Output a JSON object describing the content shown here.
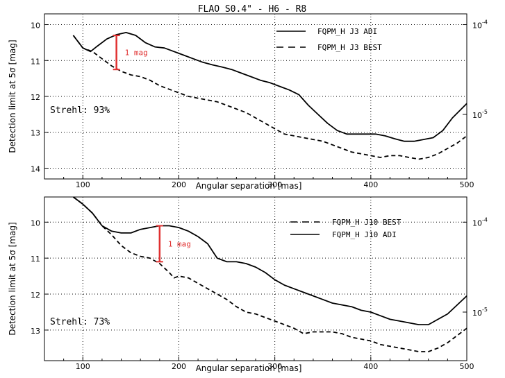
{
  "figure_title": "FLAO S0.4\" - H6 - R8",
  "colors": {
    "curve": "#000000",
    "annotation": "#e03030",
    "grid": "#000000"
  },
  "chart_data": [
    {
      "type": "line",
      "xlabel": "Angular separation [mas]",
      "ylabel": "Detection limit at 5σ [mag]",
      "xlim": [
        60,
        500
      ],
      "ylim": [
        14.3,
        9.7
      ],
      "x_ticks": [
        100,
        200,
        300,
        400,
        500
      ],
      "y_ticks": [
        10,
        11,
        12,
        13,
        14
      ],
      "right_ticks": [
        {
          "mag": 10.0,
          "label": "10",
          "exp": "-4"
        },
        {
          "mag": 12.5,
          "label": "10",
          "exp": "-5"
        }
      ],
      "grid": "dotted",
      "legend_position": "top-right",
      "strehl": "Strehl: 93%",
      "annotation": {
        "label": "1 mag",
        "x": 135,
        "y_top": 10.3,
        "y_bottom": 11.25
      },
      "series": [
        {
          "name": "FQPM_H J3 ADI",
          "style": "solid",
          "x": [
            90,
            100,
            108,
            115,
            125,
            135,
            145,
            155,
            165,
            175,
            185,
            195,
            205,
            215,
            225,
            235,
            245,
            255,
            265,
            275,
            285,
            295,
            305,
            315,
            325,
            335,
            345,
            355,
            365,
            375,
            385,
            395,
            405,
            415,
            425,
            435,
            445,
            455,
            465,
            475,
            485,
            500
          ],
          "values": [
            10.3,
            10.65,
            10.75,
            10.6,
            10.4,
            10.28,
            10.22,
            10.3,
            10.5,
            10.62,
            10.65,
            10.75,
            10.85,
            10.95,
            11.05,
            11.12,
            11.18,
            11.25,
            11.35,
            11.45,
            11.55,
            11.62,
            11.72,
            11.82,
            11.95,
            12.25,
            12.5,
            12.75,
            12.95,
            13.05,
            13.05,
            13.05,
            13.05,
            13.1,
            13.18,
            13.25,
            13.25,
            13.2,
            13.15,
            12.95,
            12.6,
            12.2
          ]
        },
        {
          "name": "FQPM_H J3 BEST",
          "style": "dashed",
          "x": [
            90,
            100,
            110,
            120,
            130,
            140,
            150,
            160,
            170,
            180,
            190,
            200,
            210,
            220,
            230,
            240,
            250,
            260,
            270,
            280,
            290,
            300,
            310,
            320,
            330,
            340,
            350,
            360,
            370,
            380,
            390,
            400,
            410,
            420,
            430,
            440,
            450,
            460,
            470,
            480,
            490,
            500
          ],
          "values": [
            10.3,
            10.65,
            10.75,
            10.95,
            11.15,
            11.3,
            11.4,
            11.45,
            11.55,
            11.7,
            11.8,
            11.9,
            12.0,
            12.05,
            12.1,
            12.15,
            12.25,
            12.35,
            12.45,
            12.6,
            12.75,
            12.9,
            13.05,
            13.1,
            13.15,
            13.2,
            13.25,
            13.35,
            13.45,
            13.55,
            13.6,
            13.65,
            13.7,
            13.65,
            13.65,
            13.7,
            13.75,
            13.7,
            13.6,
            13.45,
            13.3,
            13.1
          ]
        }
      ]
    },
    {
      "type": "line",
      "xlabel": "Angular separation [mas]",
      "ylabel": "Detection limit at 5σ [mag]",
      "xlim": [
        60,
        500
      ],
      "ylim": [
        13.85,
        9.3
      ],
      "x_ticks": [
        100,
        200,
        300,
        400,
        500
      ],
      "y_ticks": [
        10,
        11,
        12,
        13
      ],
      "right_ticks": [
        {
          "mag": 10.0,
          "label": "10",
          "exp": "-4"
        },
        {
          "mag": 12.5,
          "label": "10",
          "exp": "-5"
        }
      ],
      "grid": "dotted",
      "legend_position": "top-right",
      "strehl": "Strehl: 73%",
      "annotation": {
        "label": "1 mag",
        "x": 180,
        "y_top": 10.1,
        "y_bottom": 11.1
      },
      "series": [
        {
          "name": "FQPM_H J10 BEST",
          "style": "dashed",
          "x": [
            90,
            100,
            110,
            120,
            130,
            140,
            150,
            160,
            170,
            180,
            190,
            195,
            200,
            210,
            220,
            230,
            240,
            250,
            260,
            270,
            280,
            290,
            300,
            310,
            320,
            330,
            340,
            350,
            360,
            370,
            380,
            390,
            400,
            410,
            420,
            430,
            440,
            450,
            460,
            470,
            480,
            490,
            500
          ],
          "values": [
            9.3,
            9.5,
            9.75,
            10.1,
            10.35,
            10.65,
            10.85,
            10.95,
            11.0,
            11.15,
            11.4,
            11.55,
            11.5,
            11.55,
            11.7,
            11.85,
            12.0,
            12.15,
            12.35,
            12.5,
            12.55,
            12.65,
            12.75,
            12.85,
            12.95,
            13.1,
            13.05,
            13.05,
            13.05,
            13.1,
            13.2,
            13.25,
            13.3,
            13.4,
            13.45,
            13.5,
            13.55,
            13.6,
            13.6,
            13.5,
            13.35,
            13.15,
            12.95
          ]
        },
        {
          "name": "FQPM_H J10 ADI",
          "style": "solid",
          "x": [
            90,
            100,
            110,
            120,
            130,
            140,
            150,
            160,
            170,
            180,
            190,
            200,
            210,
            220,
            230,
            240,
            250,
            260,
            270,
            280,
            290,
            300,
            310,
            320,
            330,
            340,
            350,
            360,
            370,
            380,
            390,
            400,
            410,
            420,
            430,
            440,
            450,
            460,
            470,
            480,
            490,
            500
          ],
          "values": [
            9.3,
            9.5,
            9.75,
            10.1,
            10.25,
            10.3,
            10.3,
            10.2,
            10.15,
            10.1,
            10.1,
            10.15,
            10.25,
            10.4,
            10.6,
            11.0,
            11.1,
            11.1,
            11.15,
            11.25,
            11.4,
            11.6,
            11.75,
            11.85,
            11.95,
            12.05,
            12.15,
            12.25,
            12.3,
            12.35,
            12.45,
            12.5,
            12.6,
            12.7,
            12.75,
            12.8,
            12.85,
            12.85,
            12.7,
            12.55,
            12.3,
            12.05
          ]
        }
      ]
    }
  ]
}
